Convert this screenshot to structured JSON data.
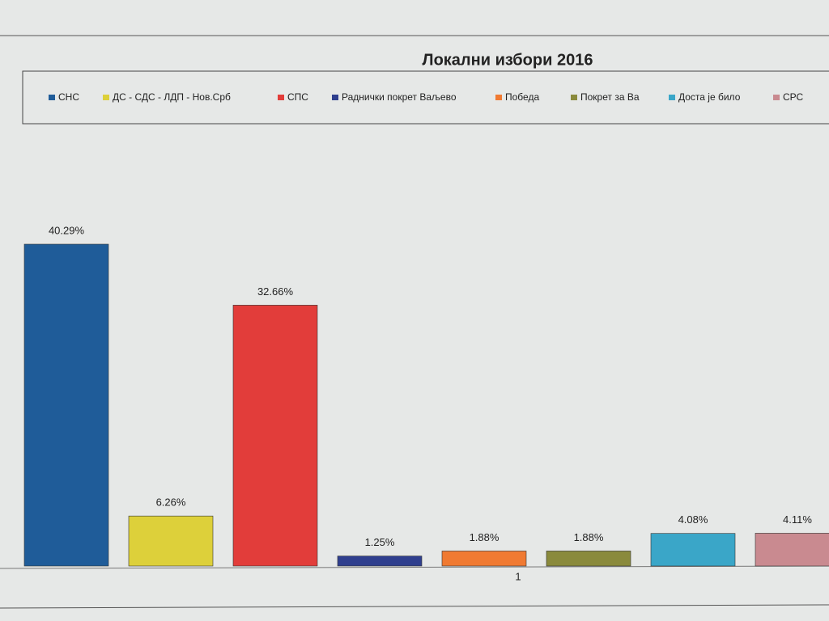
{
  "chart_data": {
    "type": "bar",
    "title": "Локални избори 2016",
    "categories": [
      "1"
    ],
    "series": [
      {
        "name": "СНС",
        "color": "#1f5c99",
        "values": [
          40.29
        ],
        "value_labels": [
          "40.29%"
        ]
      },
      {
        "name": "ДС - СДС - ЛДП - Нов.Срб",
        "color": "#ddd03a",
        "values": [
          6.26
        ],
        "value_labels": [
          "6.26%"
        ]
      },
      {
        "name": "СПС",
        "color": "#e23d3a",
        "values": [
          32.66
        ],
        "value_labels": [
          "32.66%"
        ]
      },
      {
        "name": "Раднички покрет Ваљево",
        "color": "#2f3f8e",
        "values": [
          1.25
        ],
        "value_labels": [
          "1.25%"
        ]
      },
      {
        "name": "Победа",
        "color": "#f07a32",
        "values": [
          1.88
        ],
        "value_labels": [
          "1.88%"
        ]
      },
      {
        "name": "Покрет за Ва",
        "color": "#8a8a3c",
        "values": [
          1.88
        ],
        "value_labels": [
          "1.88%"
        ]
      },
      {
        "name": "Доста је било",
        "color": "#3aa6c8",
        "values": [
          4.08
        ],
        "value_labels": [
          "4.08%"
        ]
      },
      {
        "name": "СРС",
        "color": "#c98a90",
        "values": [
          4.11
        ],
        "value_labels": [
          "4.11%"
        ]
      }
    ],
    "legend": "top"
  }
}
